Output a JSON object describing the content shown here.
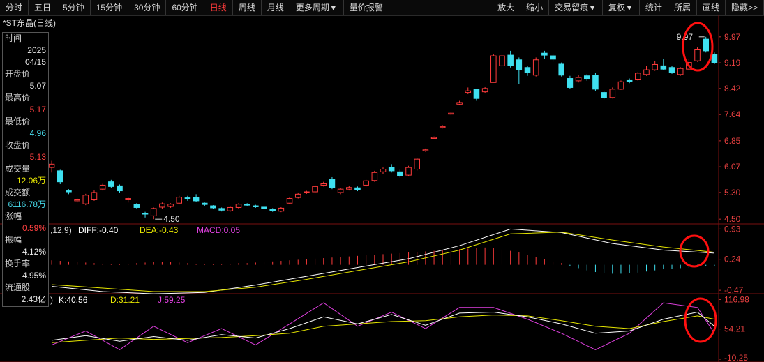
{
  "toolbar": {
    "left_tabs": [
      "分时",
      "五日",
      "5分钟",
      "15分钟",
      "30分钟",
      "60分钟",
      "日线",
      "周线",
      "月线",
      "更多周期▼",
      "量价报警"
    ],
    "active_tab": "日线",
    "right_tabs": [
      "放大",
      "缩小",
      "交易留痕▼",
      "复权▼",
      "统计",
      "所属",
      "画线",
      "隐藏>>"
    ]
  },
  "stock_title": "*ST东晶(日线)",
  "info_panel": {
    "items": [
      {
        "label": "时间",
        "value": "2025"
      },
      {
        "label": "",
        "value": "04/15"
      },
      {
        "label": "开盘价",
        "value": "5.07",
        "color": "#e8e8e8"
      },
      {
        "label": "最高价",
        "value": "5.17",
        "color": "#ff4040"
      },
      {
        "label": "最低价",
        "value": "4.96",
        "color": "#45d6e6"
      },
      {
        "label": "收盘价",
        "value": "5.13",
        "color": "#ff4040"
      },
      {
        "label": "成交量",
        "value": "12.06万",
        "color": "#e6e600"
      },
      {
        "label": "成交额",
        "value": "6116.78万",
        "color": "#45d6e6"
      },
      {
        "label": "涨幅",
        "value": "0.59%",
        "color": "#ff4040"
      },
      {
        "label": "振幅",
        "value": "4.12%",
        "color": "#e8e8e8"
      },
      {
        "label": "换手率",
        "value": "4.95%",
        "color": "#e8e8e8"
      },
      {
        "label": "流通股",
        "value": "2.43亿",
        "color": "#e8e8e8"
      }
    ]
  },
  "chart_data": [
    {
      "type": "candlestick",
      "name": "price",
      "y_ticks": [
        "9.97",
        "9.19",
        "8.42",
        "7.64",
        "6.85",
        "6.07",
        "5.30",
        "4.50"
      ],
      "ylim": [
        4.42,
        10.28
      ],
      "high_label": "9.97",
      "low_label": "4.50",
      "candles": [
        [
          6.05,
          6.15,
          5.9,
          6.25
        ],
        [
          5.95,
          5.62,
          5.55,
          5.98
        ],
        [
          5.35,
          5.32,
          5.25,
          5.4
        ],
        [
          5.05,
          5.08,
          5.0,
          5.12
        ],
        [
          4.96,
          5.22,
          4.92,
          5.26
        ],
        [
          5.08,
          5.3,
          5.05,
          5.36
        ],
        [
          5.4,
          5.52,
          5.36,
          5.56
        ],
        [
          5.62,
          5.48,
          5.44,
          5.68
        ],
        [
          5.5,
          5.35,
          5.3,
          5.54
        ],
        [
          5.08,
          5.12,
          5.0,
          5.15
        ],
        [
          4.95,
          4.85,
          4.82,
          4.98
        ],
        [
          4.68,
          4.65,
          4.55,
          4.72
        ],
        [
          4.6,
          4.82,
          4.5,
          4.85
        ],
        [
          4.86,
          4.96,
          4.8,
          5.0
        ],
        [
          4.88,
          4.95,
          4.84,
          4.98
        ],
        [
          4.98,
          5.16,
          4.95,
          5.2
        ],
        [
          5.14,
          5.1,
          5.05,
          5.2
        ],
        [
          5.15,
          5.05,
          5.02,
          5.25
        ],
        [
          4.98,
          4.94,
          4.9,
          5.0
        ],
        [
          4.9,
          4.84,
          4.8,
          4.92
        ],
        [
          4.82,
          4.77,
          4.73,
          4.85
        ],
        [
          4.75,
          4.85,
          4.72,
          4.88
        ],
        [
          4.85,
          4.95,
          4.82,
          4.98
        ],
        [
          4.95,
          4.92,
          4.88,
          4.98
        ],
        [
          4.9,
          4.87,
          4.84,
          4.93
        ],
        [
          4.86,
          4.82,
          4.79,
          4.88
        ],
        [
          4.8,
          4.75,
          4.72,
          4.83
        ],
        [
          4.74,
          4.83,
          4.71,
          4.86
        ],
        [
          4.98,
          5.12,
          4.95,
          5.15
        ],
        [
          5.15,
          5.25,
          5.12,
          5.3
        ],
        [
          5.3,
          5.32,
          5.26,
          5.35
        ],
        [
          5.32,
          5.48,
          5.28,
          5.52
        ],
        [
          5.52,
          5.56,
          5.48,
          5.62
        ],
        [
          5.7,
          5.45,
          5.4,
          5.76
        ],
        [
          5.3,
          5.4,
          5.25,
          5.44
        ],
        [
          5.4,
          5.45,
          5.36,
          5.5
        ],
        [
          5.44,
          5.38,
          5.34,
          5.48
        ],
        [
          5.52,
          5.65,
          5.48,
          5.68
        ],
        [
          5.66,
          5.9,
          5.62,
          5.95
        ],
        [
          5.92,
          6.0,
          5.85,
          6.05
        ],
        [
          6.05,
          5.95,
          5.9,
          6.15
        ],
        [
          5.92,
          5.8,
          5.75,
          5.98
        ],
        [
          5.82,
          6.05,
          5.78,
          6.1
        ],
        [
          6.0,
          6.3,
          5.96,
          6.34
        ],
        [
          6.55,
          6.58,
          6.52,
          6.62
        ],
        [
          6.92,
          6.95,
          6.9,
          6.98
        ],
        [
          7.25,
          7.28,
          7.22,
          7.32
        ],
        [
          7.65,
          7.68,
          7.62,
          7.72
        ],
        [
          7.95,
          8.0,
          7.92,
          8.05
        ],
        [
          8.3,
          8.35,
          8.25,
          8.45
        ],
        [
          8.4,
          8.12,
          8.05,
          8.4
        ],
        [
          8.32,
          8.42,
          8.28,
          8.46
        ],
        [
          8.6,
          9.4,
          8.6,
          9.45
        ],
        [
          9.1,
          9.4,
          9.0,
          9.48
        ],
        [
          9.42,
          9.1,
          9.05,
          9.55
        ],
        [
          9.28,
          8.98,
          8.55,
          9.35
        ],
        [
          9.05,
          8.9,
          8.8,
          9.1
        ],
        [
          8.82,
          9.28,
          8.78,
          9.35
        ],
        [
          9.48,
          9.42,
          9.3,
          9.55
        ],
        [
          9.4,
          9.3,
          9.22,
          9.45
        ],
        [
          9.15,
          8.82,
          8.78,
          9.2
        ],
        [
          8.72,
          8.45,
          8.4,
          8.8
        ],
        [
          8.65,
          8.75,
          8.6,
          8.82
        ],
        [
          8.8,
          8.72,
          8.65,
          8.85
        ],
        [
          8.82,
          8.4,
          8.35,
          8.88
        ],
        [
          8.3,
          8.15,
          8.1,
          8.35
        ],
        [
          8.15,
          8.4,
          8.12,
          8.45
        ],
        [
          8.4,
          8.62,
          8.38,
          8.66
        ],
        [
          8.68,
          8.62,
          8.58,
          8.72
        ],
        [
          8.7,
          8.88,
          8.65,
          8.92
        ],
        [
          8.84,
          8.98,
          8.8,
          9.1
        ],
        [
          8.98,
          9.14,
          8.95,
          9.25
        ],
        [
          9.1,
          9.0,
          8.98,
          9.3
        ],
        [
          9.05,
          8.9,
          8.86,
          9.1
        ],
        [
          8.84,
          9.02,
          8.8,
          9.06
        ],
        [
          9.0,
          9.2,
          8.96,
          9.3
        ],
        [
          9.25,
          9.6,
          9.22,
          9.65
        ],
        [
          9.9,
          9.55,
          9.5,
          9.97
        ],
        [
          9.45,
          9.2,
          9.15,
          9.5
        ]
      ]
    },
    {
      "type": "line",
      "name": "macd",
      "legend": {
        "prefix": ",12,9)",
        "diff": "DIFF:-0.40",
        "dea": "DEA:-0.43",
        "macd": "MACD:0.05"
      },
      "y_ticks": [
        "0.93",
        "0.24",
        "-0.47"
      ],
      "ylim": [
        -0.5,
        1.0
      ],
      "x": [
        0,
        6,
        12,
        18,
        24,
        30,
        36,
        42,
        48,
        54,
        60,
        66,
        72,
        78
      ],
      "diff": [
        -0.38,
        -0.5,
        -0.55,
        -0.52,
        -0.35,
        -0.15,
        0.05,
        0.25,
        0.55,
        0.93,
        0.85,
        0.6,
        0.45,
        0.38
      ],
      "dea": [
        -0.34,
        -0.42,
        -0.5,
        -0.5,
        -0.4,
        -0.22,
        -0.02,
        0.18,
        0.45,
        0.82,
        0.86,
        0.68,
        0.52,
        0.4
      ],
      "histogram": [
        0.08,
        0.07,
        0.06,
        0.05,
        0.04,
        0.03,
        0.02,
        0.01,
        0.01,
        0.02,
        0.03,
        0.04,
        0.05,
        0.05,
        0.05,
        0.04,
        0.03,
        0.02,
        0.01,
        0.01,
        0.02,
        0.02,
        0.03,
        0.03,
        0.04,
        0.05,
        0.06,
        0.07,
        0.08,
        0.09,
        0.1,
        0.11,
        0.12,
        0.13,
        0.14,
        0.15,
        0.16,
        0.17,
        0.18,
        0.19,
        0.2,
        0.21,
        0.22,
        0.23,
        0.24,
        0.25,
        0.26,
        0.27,
        0.28,
        0.29,
        0.3,
        0.31,
        0.3,
        0.28,
        0.25,
        0.22,
        0.18,
        0.14,
        0.1,
        0.06,
        0.03,
        -0.02,
        -0.06,
        -0.1,
        -0.13,
        -0.15,
        -0.16,
        -0.16,
        -0.15,
        -0.14,
        -0.12,
        -0.1,
        -0.08,
        -0.07,
        -0.06,
        -0.05,
        -0.04,
        -0.03,
        -0.02
      ]
    },
    {
      "type": "line",
      "name": "kdj",
      "legend": {
        "prefix": ")",
        "k": "K:40.56",
        "d": "D:31.21",
        "j": "J:59.25"
      },
      "y_ticks": [
        "116.98",
        "54.21",
        "-10.25"
      ],
      "ylim": [
        -10.25,
        125
      ],
      "x": [
        0,
        4,
        8,
        12,
        16,
        20,
        24,
        28,
        32,
        36,
        40,
        44,
        48,
        52,
        56,
        60,
        64,
        68,
        72,
        76,
        78
      ],
      "k": [
        30,
        40,
        28,
        38,
        30,
        42,
        35,
        55,
        80,
        65,
        85,
        62,
        88,
        90,
        80,
        65,
        45,
        50,
        75,
        90,
        60
      ],
      "d": [
        25,
        30,
        35,
        32,
        34,
        36,
        40,
        45,
        60,
        65,
        70,
        72,
        80,
        84,
        82,
        72,
        60,
        55,
        70,
        82,
        75
      ],
      "j": [
        20,
        50,
        10,
        60,
        25,
        55,
        20,
        65,
        110,
        60,
        90,
        55,
        100,
        100,
        75,
        45,
        10,
        45,
        110,
        100,
        45
      ]
    }
  ]
}
